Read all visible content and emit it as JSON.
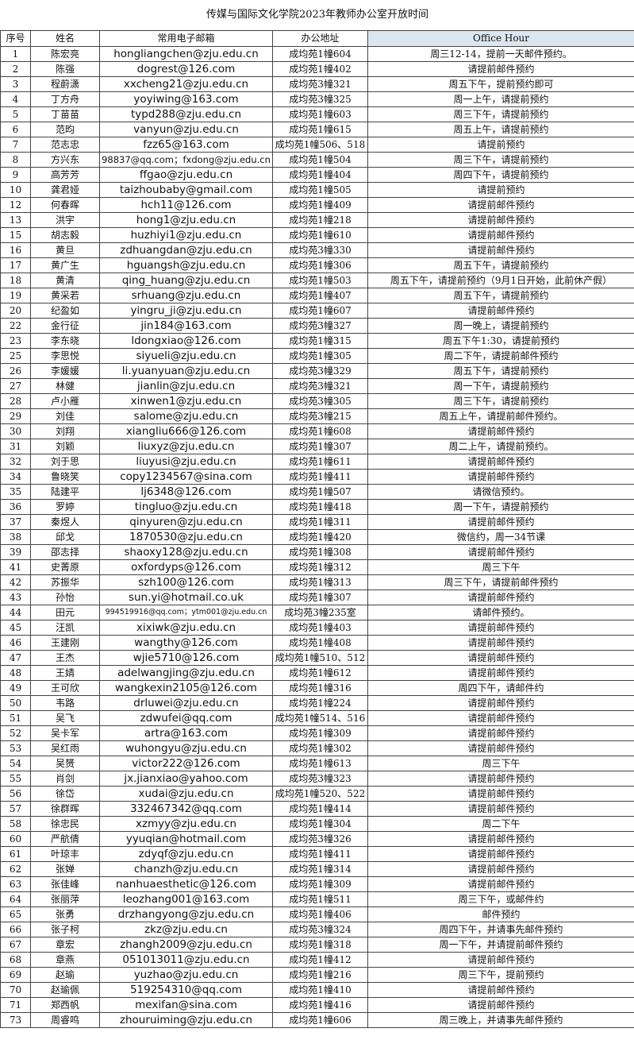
{
  "title": "传媒与国际文化学院2023年教师办公室开放时间",
  "headers": [
    "序号",
    "姓名",
    "常用电子邮箱",
    "办公地址",
    "Office Hour"
  ],
  "rows": [
    [
      "1",
      "陈宏亮",
      "hongliangchen@zju.edu.cn",
      "成均苑1幢604",
      "周三12-14，提前一天邮件预约。"
    ],
    [
      "2",
      "陈强",
      "dogrest@126.com",
      "成均苑1幢402",
      "请提前邮件预约"
    ],
    [
      "3",
      "程蔚潇",
      "xxcheng21@zju.edu.cn",
      "成均苑3幢321",
      "周五下午，提前预约即可"
    ],
    [
      "4",
      "丁方舟",
      "yoyiwing@163.com",
      "成均苑3幢325",
      "周一上午，请提前预约"
    ],
    [
      "5",
      "丁苗苗",
      "typd288@zju.edu.cn",
      "成均苑1幢603",
      "周三下午，请提前预约"
    ],
    [
      "6",
      "范昀",
      "vanyun@zju.edu.cn",
      "成均苑1幢615",
      "周五上午，请提前预约"
    ],
    [
      "7",
      "范志忠",
      "fzz65@163.com",
      "成均苑1幢506、518",
      "请提前预约"
    ],
    [
      "8",
      "方兴东",
      "98837@qq.com；fxdong@zju.edu.cn",
      "成均苑1幢504",
      "周三下午，请提前预约"
    ],
    [
      "9",
      "高芳芳",
      "ffgao@zju.edu.cn",
      "成均苑1幢404",
      "周四下午，请提前预约"
    ],
    [
      "10",
      "龚君娅",
      "taizhoubaby@gmail.com",
      "成均苑1幢505",
      "请提前预约"
    ],
    [
      "12",
      "何春晖",
      "hch11@126.com",
      "成均苑1幢409",
      "请提前邮件预约"
    ],
    [
      "13",
      "洪宇",
      "hong1@zju.edu.cn",
      "成均苑1幢218",
      "请提前邮件预约"
    ],
    [
      "15",
      "胡志毅",
      "huzhiyi1@zju.edu.cn",
      "成均苑1幢610",
      "请提前邮件预约"
    ],
    [
      "16",
      "黄旦",
      "zdhuangdan@zju.edu.cn",
      "成均苑3幢330",
      "请提前邮件预约"
    ],
    [
      "17",
      "黄广生",
      "hguangsh@zju.edu.cn",
      "成均苑1幢306",
      "周五下午，请提前预约"
    ],
    [
      "18",
      "黄清",
      "qing_huang@zju.edu.cn",
      "成均苑1幢503",
      "周五下午，请提前预约（9月1日开始，此前休产假）"
    ],
    [
      "19",
      "黄采若",
      "srhuang@zju.edu.cn",
      "成均苑1幢407",
      "周五下午，请提前预约"
    ],
    [
      "20",
      "纪盈如",
      "yingru_ji@zju.edu.cn",
      "成均苑1幢607",
      "请提前邮件预约"
    ],
    [
      "22",
      "金行征",
      "jin184@163.com",
      "成均苑3幢327",
      "周一晚上，请提前预约"
    ],
    [
      "23",
      "李东晓",
      "ldongxiao@126.com",
      "成均苑1幢315",
      "周五下午1:30，请提前预约"
    ],
    [
      "25",
      "李思悦",
      "siyueli@zju.edu.cn",
      "成均苑1幢305",
      "周二下午，请提前邮件预约"
    ],
    [
      "26",
      "李媛媛",
      "li.yuanyuan@zju.edu.cn",
      "成均苑3幢329",
      "周五下午，请提前预约"
    ],
    [
      "27",
      "林健",
      "jianlin@zju.edu.cn",
      "成均苑3幢321",
      "周一下午，请提前预约"
    ],
    [
      "28",
      "卢小雁",
      "xinwen1@zju.edu.cn",
      "成均苑3幢305",
      "周三下午，请提前预约"
    ],
    [
      "29",
      "刘佳",
      "salome@zju.edu.cn",
      "成均苑3幢215",
      "周五上午，请提前邮件预约。"
    ],
    [
      "30",
      "刘翔",
      "xiangliu666@126.com",
      "成均苑1幢608",
      "请提前邮件预约"
    ],
    [
      "31",
      "刘颖",
      "liuxyz@zju.edu.cn",
      "成均苑1幢307",
      "周二上午，请提前预约。"
    ],
    [
      "32",
      "刘于思",
      "liuyusi@zju.edu.cn",
      "成均苑1幢611",
      "请提前邮件预约"
    ],
    [
      "34",
      "鲁晓笑",
      "copy1234567@sina.com",
      "成均苑1幢411",
      "请提前邮件预约"
    ],
    [
      "35",
      "陆建平",
      "lj6348@126.com",
      "成均苑1幢507",
      "请微信预约。"
    ],
    [
      "36",
      "罗婷",
      "tingluo@zju.edu.cn",
      "成均苑1幢418",
      "周一下午，请提前预约"
    ],
    [
      "37",
      "秦煜人",
      "qinyuren@zju.edu.cn",
      "成均苑1幢311",
      "请提前邮件预约"
    ],
    [
      "38",
      "邱戈",
      "1870530@zju.edu.cn",
      "成均苑1幢420",
      "微信约，周一34节课"
    ],
    [
      "39",
      "邵志择",
      "shaoxy128@zju.edu.cn",
      "成均苑1幢308",
      "请提前邮件预约"
    ],
    [
      "41",
      "史菁原",
      "oxfordyps@126.com",
      "成均苑1幢312",
      "周三下午"
    ],
    [
      "42",
      "苏振华",
      "szh100@126.com",
      "成均苑1幢313",
      "周三下午，请提前邮件预约"
    ],
    [
      "43",
      "孙怡",
      "sun.yi@hotmail.co.uk",
      "成均苑1幢307",
      "请提前邮件预约"
    ],
    [
      "44",
      "田元",
      "994519916@qq.com；ytm001@zju.edu.cn",
      "成均苑3幢235室",
      "请邮件预约。"
    ],
    [
      "45",
      "汪凯",
      "xixiwk@zju.edu.cn",
      "成均苑1幢403",
      "请提前邮件预约"
    ],
    [
      "46",
      "王建刚",
      "wangthy@126.com",
      "成均苑1幢408",
      "请提前邮件预约"
    ],
    [
      "47",
      "王杰",
      "wjie5710@126.com",
      "成均苑1幢510、512",
      "请提前邮件预约"
    ],
    [
      "48",
      "王婧",
      "adelwangjing@zju.edu.cn",
      "成均苑1幢612",
      "请提前邮件预约"
    ],
    [
      "49",
      "王可欣",
      "wangkexin2105@126.com",
      "成均苑1幢316",
      "周四下午，请邮件约"
    ],
    [
      "50",
      "韦路",
      "drluwei@zju.edu.cn",
      "成均苑1幢224",
      "请提前邮件预约"
    ],
    [
      "51",
      "吴飞",
      "zdwufei@qq.com",
      "成均苑1幢514、516",
      "请提前邮件预约"
    ],
    [
      "52",
      "吴卡军",
      "artra@163.com",
      "成均苑1幢309",
      "请提前邮件预约"
    ],
    [
      "53",
      "吴红雨",
      "wuhongyu@zju.edu.cn",
      "成均苑1幢302",
      "请提前邮件预约"
    ],
    [
      "54",
      "吴赟",
      "victor222@126.com",
      "成均苑1幢613",
      "周三下午"
    ],
    [
      "55",
      "肖剑",
      "jx.jianxiao@yahoo.com",
      "成均苑3幢323",
      "请提前邮件预约"
    ],
    [
      "56",
      "徐岱",
      "xudai@zju.edu.cn",
      "成均苑1幢520、522",
      "请提前邮件预约"
    ],
    [
      "57",
      "徐群晖",
      "332467342@qq.com",
      "成均苑1幢414",
      "请提前邮件预约"
    ],
    [
      "58",
      "徐忠民",
      "xzmyy@zju.edu.cn",
      "成均苑1幢304",
      "周二下午"
    ],
    [
      "60",
      "严航倩",
      "yyuqian@hotmail.com",
      "成均苑3幢326",
      "请提前邮件预约"
    ],
    [
      "61",
      "叶琼丰",
      "zdyqf@zju.edu.cn",
      "成均苑1幢411",
      "请提前邮件预约"
    ],
    [
      "62",
      "张婵",
      "chanzh@zju.edu.cn",
      "成均苑1幢314",
      "请提前邮件预约"
    ],
    [
      "63",
      "张佳峰",
      "nanhuaesthetic@126.com",
      "成均苑1幢309",
      "请提前邮件预约"
    ],
    [
      "64",
      "张丽萍",
      "leozhang001@163.com",
      "成均苑1幢511",
      "周三下午，或邮件约"
    ],
    [
      "65",
      "张勇",
      "drzhangyong@zju.edu.cn",
      "成均苑1幢406",
      "邮件预约"
    ],
    [
      "66",
      "张子柯",
      "zkz@zju.edu.cn",
      "成均苑3幢324",
      "周四下午，并请事先邮件预约"
    ],
    [
      "67",
      "章宏",
      "zhangh2009@zju.edu.cn",
      "成均苑1幢318",
      "周一下午，并请提前邮件预约"
    ],
    [
      "68",
      "章燕",
      "051013011@zju.edu.cn",
      "成均苑1幢412",
      "请提前邮件预约"
    ],
    [
      "69",
      "赵瑜",
      "yuzhao@zju.edu.cn",
      "成均苑1幢216",
      "周三下午，提前预约"
    ],
    [
      "70",
      "赵瑜佩",
      "519254310@qq.com",
      "成均苑1幢410",
      "请提前邮件预约"
    ],
    [
      "71",
      "郑西帆",
      "mexifan@sina.com",
      "成均苑1幢416",
      "请提前邮件预约"
    ],
    [
      "73",
      "周睿鸣",
      "zhouruiming@zju.edu.cn",
      "成均苑1幢606",
      "周三晚上，并请事先邮件预约"
    ]
  ]
}
